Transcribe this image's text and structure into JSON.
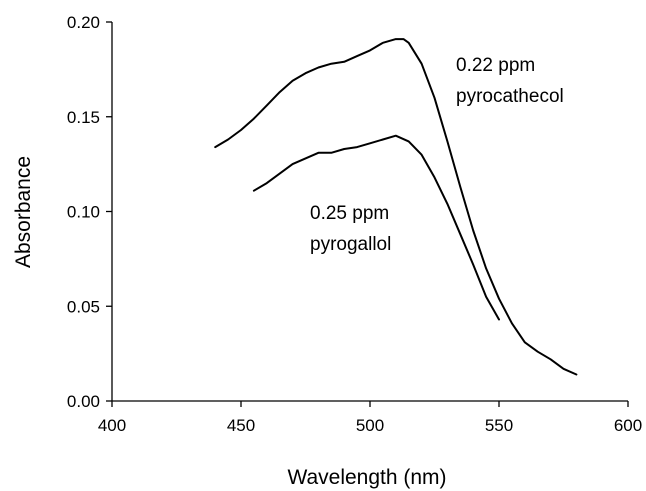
{
  "chart_data": {
    "type": "line",
    "xlabel": "Wavelength (nm)",
    "ylabel": "Absorbance",
    "xlim": [
      400,
      600
    ],
    "ylim": [
      0.0,
      0.2
    ],
    "xticks": [
      "400",
      "450",
      "500",
      "550",
      "600"
    ],
    "yticks": [
      "0.00",
      "0.05",
      "0.10",
      "0.15",
      "0.20"
    ],
    "grid": false,
    "annotations": [
      {
        "lines": [
          "0.22 ppm",
          "pyrocathecol"
        ]
      },
      {
        "lines": [
          "0.25 ppm",
          "pyrogallol"
        ]
      }
    ],
    "series": [
      {
        "x": [
          440,
          445,
          450,
          455,
          460,
          465,
          470,
          475,
          480,
          485,
          490,
          495,
          500,
          505,
          510,
          513,
          515,
          520,
          525,
          530,
          535,
          540,
          545,
          550,
          555,
          560,
          565,
          570,
          575,
          580
        ],
        "values": [
          0.134,
          0.138,
          0.143,
          0.149,
          0.156,
          0.163,
          0.169,
          0.173,
          0.176,
          0.178,
          0.179,
          0.182,
          0.185,
          0.189,
          0.191,
          0.191,
          0.189,
          0.178,
          0.16,
          0.137,
          0.113,
          0.09,
          0.07,
          0.054,
          0.041,
          0.031,
          0.026,
          0.022,
          0.017,
          0.014
        ],
        "color": "#000000"
      },
      {
        "x": [
          455,
          460,
          465,
          470,
          475,
          480,
          485,
          490,
          495,
          500,
          505,
          510,
          515,
          520,
          525,
          530,
          535,
          540,
          545,
          550
        ],
        "values": [
          0.111,
          0.115,
          0.12,
          0.125,
          0.128,
          0.131,
          0.131,
          0.133,
          0.134,
          0.136,
          0.138,
          0.14,
          0.137,
          0.13,
          0.118,
          0.104,
          0.088,
          0.072,
          0.055,
          0.043
        ],
        "color": "#000000"
      }
    ]
  }
}
